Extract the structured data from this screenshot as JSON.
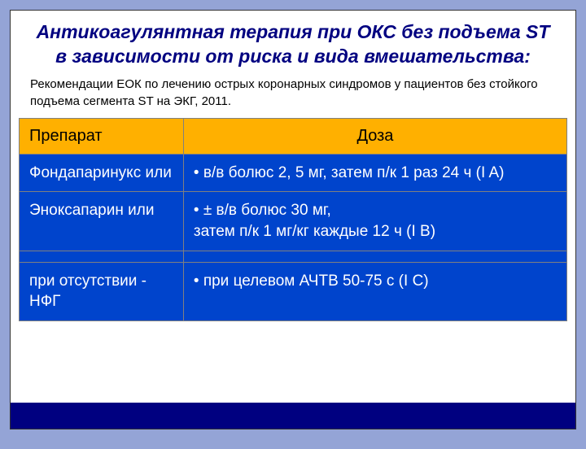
{
  "slide": {
    "title": "Антикоагулянтная терапия при ОКС без подъема ST в зависимости от риска и вида вмешательства:",
    "subtitle": "Рекомендации ЕОК по лечению острых коронарных синдромов у пациентов без стойкого подъема сегмента ST на ЭКГ,  2011.",
    "table": {
      "headers": {
        "drug": "Препарат",
        "dose": "Доза"
      },
      "rows": [
        {
          "drug": "Фондапаринукс или",
          "dose": "• в/в болюс 2, 5 мг, затем п/к 1 раз 24 ч (I A)"
        },
        {
          "drug": "Эноксапарин или",
          "dose": "• ± в/в болюс 30 мг,\nзатем п/к 1 мг/кг каждые 12 ч (I B)"
        },
        {
          "drug": "при отсутствии - НФГ",
          "dose": "• при целевом АЧТВ 50-75 с (I C)"
        }
      ]
    },
    "colors": {
      "background": "#94a4d6",
      "slide_bg": "#ffffff",
      "title_color": "#000080",
      "header_bg": "#ffb000",
      "cell_bg": "#0044cc",
      "cell_text": "#ffffff",
      "border": "#808080",
      "bottom_band": "#000080"
    }
  }
}
